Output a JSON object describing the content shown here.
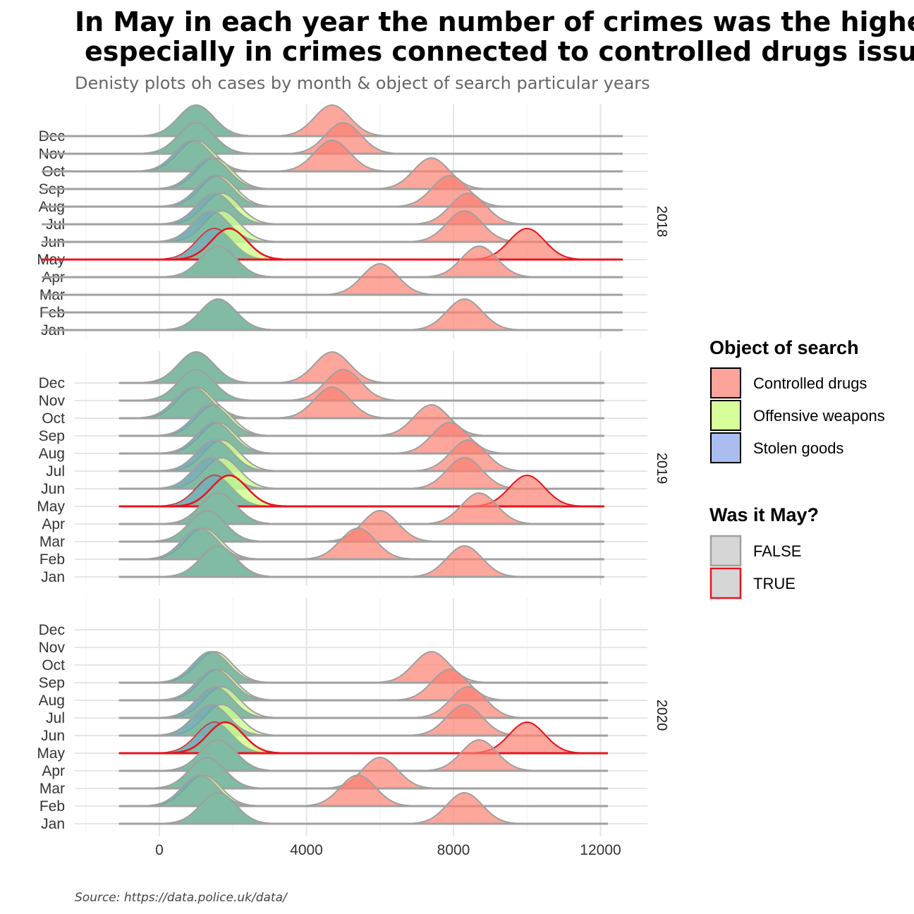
{
  "title_line1": "In May in each year the number of crimes was the highest,",
  "title_line2": "especially in crimes connected to controlled drugs issues",
  "subtitle": "Denisty plots oh cases by month & object of search particular years",
  "caption": "Source:  https://data.police.uk/data/",
  "colors": {
    "Controlled drugs": "#fb8072",
    "Offensive weapons": "#ccff90",
    "Stolen goods": "#a9bfef",
    "teal": "#6aa8a4",
    "FALSE": "#a0a0a0",
    "TRUE": "#e8141f",
    "grid": "#e6e6e6"
  },
  "legend": {
    "object_title": "Object of search",
    "object_items": [
      {
        "label": "Controlled drugs",
        "fill": "#fca39b"
      },
      {
        "label": "Offensive weapons",
        "fill": "#d6ff99"
      },
      {
        "label": "Stolen goods",
        "fill": "#a9bdf0"
      }
    ],
    "may_title": "Was it May?",
    "may_items": [
      {
        "label": "FALSE",
        "stroke": "#a0a0a0"
      },
      {
        "label": "TRUE",
        "stroke": "#e8141f"
      }
    ]
  },
  "chart_data": {
    "type": "ridgeline density (faceted by year)",
    "title": "In May in each year the number of crimes was the highest, especially in crimes connected to controlled drugs issues",
    "subtitle": "Denisty plots oh cases by month & object of search particular years",
    "caption": "Source:  https://data.police.uk/data/",
    "xlim": [
      -2000,
      13000
    ],
    "x_ticks": [
      0,
      4000,
      8000,
      12000
    ],
    "months": [
      "Jan",
      "Feb",
      "Mar",
      "Apr",
      "May",
      "Jun",
      "Jul",
      "Aug",
      "Sep",
      "Oct",
      "Nov",
      "Dec"
    ],
    "facets": [
      {
        "year": "2018",
        "range": [
          -3200,
          12600
        ],
        "rows": [
          {
            "month": "Jan",
            "stolen": 1600,
            "offensive": 1600,
            "drugs": 8300
          },
          {
            "month": "Feb",
            "stolen": null,
            "offensive": null,
            "drugs": null
          },
          {
            "month": "Mar",
            "stolen": null,
            "offensive": null,
            "drugs": 6000
          },
          {
            "month": "Apr",
            "stolen": 1600,
            "offensive": 1600,
            "drugs": 8700
          },
          {
            "month": "May",
            "stolen": 1500,
            "offensive": 1900,
            "drugs": 10000
          },
          {
            "month": "Jun",
            "stolen": 1400,
            "offensive": 1700,
            "drugs": 8300
          },
          {
            "month": "Jul",
            "stolen": 1500,
            "offensive": 1700,
            "drugs": 8400
          },
          {
            "month": "Aug",
            "stolen": 1500,
            "offensive": 1600,
            "drugs": 7900
          },
          {
            "month": "Sep",
            "stolen": 1400,
            "offensive": 1500,
            "drugs": 7400
          },
          {
            "month": "Oct",
            "stolen": 900,
            "offensive": 1000,
            "drugs": 4700
          },
          {
            "month": "Nov",
            "stolen": 1000,
            "offensive": 1000,
            "drugs": 5000
          },
          {
            "month": "Dec",
            "stolen": 1000,
            "offensive": 1000,
            "drugs": 4700
          }
        ]
      },
      {
        "year": "2019",
        "range": [
          -1100,
          12100
        ],
        "rows": [
          {
            "month": "Jan",
            "stolen": 1600,
            "offensive": 1600,
            "drugs": 8300
          },
          {
            "month": "Feb",
            "stolen": 1100,
            "offensive": 1200,
            "drugs": 5400
          },
          {
            "month": "Mar",
            "stolen": 1300,
            "offensive": 1300,
            "drugs": 6000
          },
          {
            "month": "Apr",
            "stolen": 1600,
            "offensive": 1600,
            "drugs": 8700
          },
          {
            "month": "May",
            "stolen": 1500,
            "offensive": 1900,
            "drugs": 10000
          },
          {
            "month": "Jun",
            "stolen": 1400,
            "offensive": 1700,
            "drugs": 8300
          },
          {
            "month": "Jul",
            "stolen": 1500,
            "offensive": 1700,
            "drugs": 8400
          },
          {
            "month": "Aug",
            "stolen": 1500,
            "offensive": 1600,
            "drugs": 7900
          },
          {
            "month": "Sep",
            "stolen": 1400,
            "offensive": 1500,
            "drugs": 7400
          },
          {
            "month": "Oct",
            "stolen": 900,
            "offensive": 1000,
            "drugs": 4700
          },
          {
            "month": "Nov",
            "stolen": 1000,
            "offensive": 1000,
            "drugs": 5000
          },
          {
            "month": "Dec",
            "stolen": 1000,
            "offensive": 1000,
            "drugs": 4700
          }
        ]
      },
      {
        "year": "2020",
        "range": [
          -1100,
          12200
        ],
        "rows": [
          {
            "month": "Jan",
            "stolen": 1600,
            "offensive": 1600,
            "drugs": 8300
          },
          {
            "month": "Feb",
            "stolen": 1100,
            "offensive": 1200,
            "drugs": 5400
          },
          {
            "month": "Mar",
            "stolen": 1300,
            "offensive": 1300,
            "drugs": 6000
          },
          {
            "month": "Apr",
            "stolen": 1600,
            "offensive": 1600,
            "drugs": 8700
          },
          {
            "month": "May",
            "stolen": 1500,
            "offensive": 1800,
            "drugs": 10000
          },
          {
            "month": "Jun",
            "stolen": 1400,
            "offensive": 1700,
            "drugs": 8300
          },
          {
            "month": "Jul",
            "stolen": 1500,
            "offensive": 1700,
            "drugs": 8400
          },
          {
            "month": "Aug",
            "stolen": 1500,
            "offensive": 1600,
            "drugs": 7900
          },
          {
            "month": "Sep",
            "stolen": 1400,
            "offensive": 1500,
            "drugs": 7400
          },
          {
            "month": "Oct",
            "stolen": null,
            "offensive": null,
            "drugs": null
          },
          {
            "month": "Nov",
            "stolen": null,
            "offensive": null,
            "drugs": null
          },
          {
            "month": "Dec",
            "stolen": null,
            "offensive": null,
            "drugs": null
          }
        ]
      }
    ]
  }
}
